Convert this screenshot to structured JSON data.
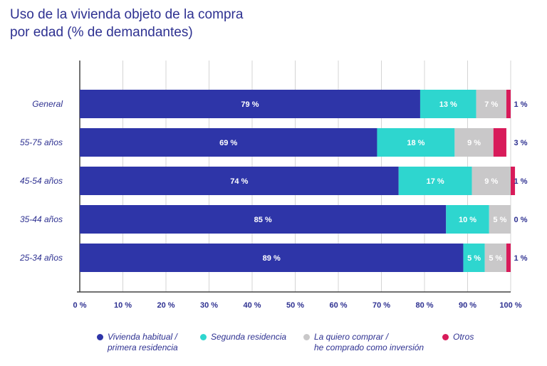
{
  "title_line1": "Uso de la vivienda objeto de la compra",
  "title_line2": "por edad (% de demandantes)",
  "chart_data": {
    "type": "bar",
    "orientation": "horizontal",
    "stacked": true,
    "categories": [
      "General",
      "55-75 años",
      "45-54 años",
      "35-44 años",
      "25-34 años"
    ],
    "series": [
      {
        "name": "Vivienda habitual / primera residencia",
        "color": "#2e35a8",
        "values": [
          79,
          69,
          74,
          85,
          89
        ],
        "labels": [
          "79 %",
          "69 %",
          "74 %",
          "85 %",
          "89 %"
        ]
      },
      {
        "name": "Segunda residencia",
        "color": "#2ed6cf",
        "values": [
          13,
          18,
          17,
          10,
          5
        ],
        "labels": [
          "13 %",
          "18 %",
          "17 %",
          "10 %",
          "5 %"
        ]
      },
      {
        "name": "La quiero comprar / he comprado como inversión",
        "color": "#c9c8c9",
        "values": [
          7,
          9,
          9,
          5,
          5
        ],
        "labels": [
          "7 %",
          "9 %",
          "9 %",
          "5 %",
          "5 %"
        ]
      },
      {
        "name": "Otros",
        "color": "#d81b5a",
        "values": [
          1,
          3,
          1,
          0,
          1
        ],
        "labels": [
          "1 %",
          "3 %",
          "1 %",
          "0 %",
          "1 %"
        ]
      }
    ],
    "xlim": [
      0,
      100
    ],
    "xticks": [
      "0 %",
      "10 %",
      "20 %",
      "30 %",
      "40 %",
      "50 %",
      "60 %",
      "70 %",
      "80 %",
      "90 %",
      "100 %"
    ],
    "grid": true,
    "legend_position": "bottom"
  },
  "legend": [
    {
      "line1": "Vivienda habitual /",
      "line2": "primera residencia",
      "color": "#2e35a8"
    },
    {
      "line1": "Segunda residencia",
      "line2": "",
      "color": "#2ed6cf"
    },
    {
      "line1": "La quiero comprar /",
      "line2": "he comprado como inversión",
      "color": "#c9c8c9"
    },
    {
      "line1": "Otros",
      "line2": "",
      "color": "#d81b5a"
    }
  ]
}
